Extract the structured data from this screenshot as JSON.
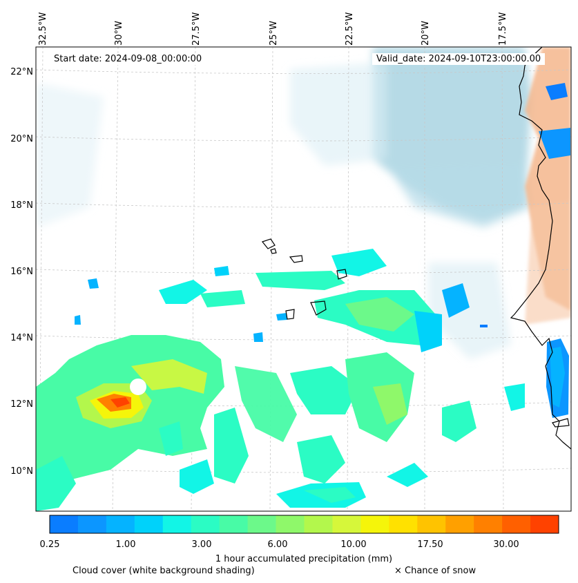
{
  "header": {
    "start_date": "Start date: 2024-09-08_00:00:00",
    "valid_date": "Valid_date: 2024-09-10T23:00:00.00"
  },
  "map": {
    "lon_labels": [
      "32.5°W",
      "30°W",
      "27.5°W",
      "25°W",
      "22.5°W",
      "20°W",
      "17.5°W"
    ],
    "lat_labels": [
      "22°N",
      "20°N",
      "18°N",
      "16°N",
      "14°N",
      "12°N",
      "10°N"
    ],
    "colors": {
      "cloud": "#a9d3e2",
      "land_warm": "#f4b68c",
      "coast": "#000000",
      "grid": "#c8c8c8"
    }
  },
  "colorbar": {
    "colors": [
      "#0a7dff",
      "#0c96ff",
      "#05b3ff",
      "#00d2fa",
      "#12f5e6",
      "#2bfcc4",
      "#48fba6",
      "#6cf98a",
      "#8ff86a",
      "#b3f74c",
      "#d6f73a",
      "#f5f50a",
      "#ffe100",
      "#ffc300",
      "#ffa000",
      "#ff8000",
      "#ff6000",
      "#ff4200"
    ],
    "tick_labels": [
      "0.25",
      "1.00",
      "3.00",
      "6.00",
      "10.00",
      "17.50",
      "30.00"
    ],
    "label": "1 hour accumulated precipitation (mm)"
  },
  "footer": {
    "cloud_note": "Cloud cover (white background shading)",
    "snow_note": "× Chance of snow"
  }
}
